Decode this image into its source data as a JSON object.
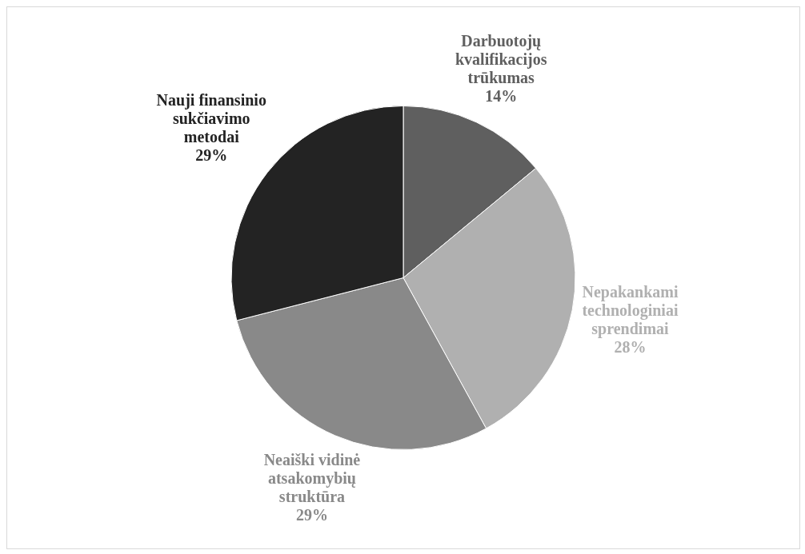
{
  "chart_data": {
    "type": "pie",
    "categories": [
      "Darbuotojų kvalifikacijos trūkumas",
      "Nepakankami technologiniai sprendimai",
      "Neaiški vidinė atsakomybių struktūra",
      "Nauji finansinio sukčiavimo metodai"
    ],
    "values": [
      14,
      28,
      29,
      29
    ],
    "value_labels": [
      "14%",
      "28%",
      "29%",
      "29%"
    ],
    "colors": [
      "#5f5f5f",
      "#b0b0b0",
      "#898989",
      "#232323"
    ],
    "legend": false
  }
}
